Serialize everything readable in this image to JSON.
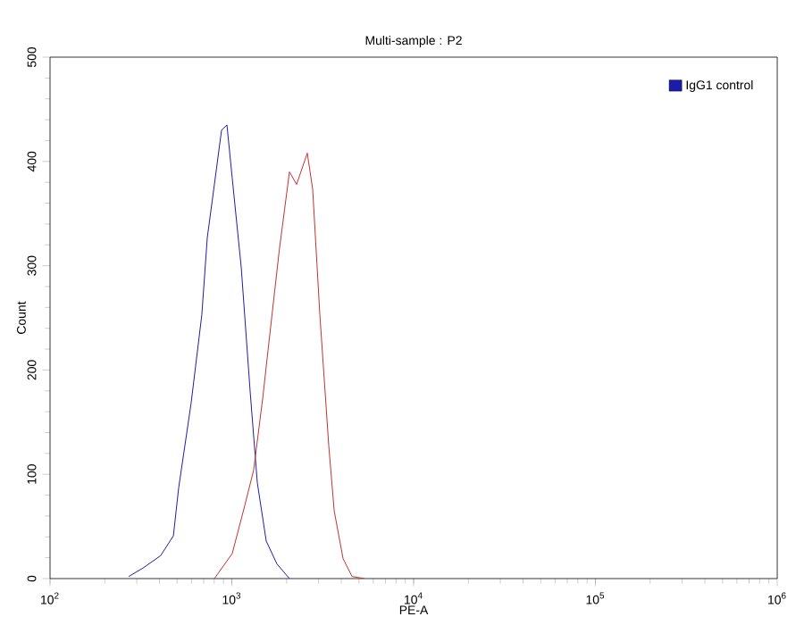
{
  "chart_data": {
    "type": "line",
    "title": "Multi-sample : P2",
    "xlabel": "PE-A",
    "ylabel": "Count",
    "log": "x",
    "xlim": [
      100,
      1000000
    ],
    "ylim": [
      0,
      500
    ],
    "xticks": [
      {
        "value": 100,
        "label": "10$^{2}$"
      },
      {
        "value": 1000,
        "label": "10$^{3}$"
      },
      {
        "value": 10000,
        "label": "10$^{4}$"
      },
      {
        "value": 100000,
        "label": "10$^{5}$"
      },
      {
        "value": 1000000,
        "label": "10$^{6}$"
      }
    ],
    "yticks": [
      0,
      100,
      200,
      300,
      400,
      500
    ],
    "grid": false,
    "legend": "top right",
    "marker": "none",
    "line_style": "solid",
    "series": [
      {
        "name": "IgG1 control",
        "color": "#1c1ca8",
        "x": [
          271,
          324,
          406,
          477,
          510,
          597,
          684,
          733,
          802,
          878,
          940,
          1005,
          1127,
          1263,
          1381,
          1546,
          1771,
          2075
        ],
        "values": [
          2,
          10,
          22,
          41,
          87,
          168,
          253,
          327,
          378,
          430,
          435,
          384,
          298,
          178,
          92,
          36,
          14,
          0
        ]
      },
      {
        "color": "#c43030",
        "x": [
          802,
          1005,
          1178,
          1318,
          1479,
          1582,
          1824,
          2075,
          2271,
          2601,
          2785,
          3049,
          3415,
          3656,
          4093,
          4585,
          5370
        ],
        "values": [
          0,
          24,
          70,
          104,
          173,
          219,
          315,
          390,
          378,
          408,
          373,
          253,
          127,
          65,
          19,
          2,
          0
        ]
      }
    ]
  }
}
